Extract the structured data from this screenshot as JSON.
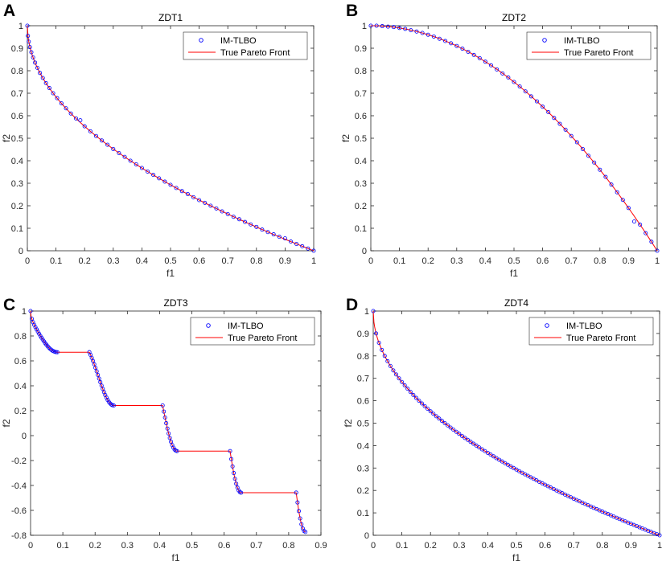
{
  "chart_data": [
    {
      "panel": "A",
      "type": "scatter+line",
      "title": "ZDT1",
      "xlabel": "f1",
      "ylabel": "f2",
      "xlim": [
        0,
        1
      ],
      "ylim": [
        0,
        1
      ],
      "xticks": [
        "0",
        "0.1",
        "0.2",
        "0.3",
        "0.4",
        "0.5",
        "0.6",
        "0.7",
        "0.8",
        "0.9",
        "1"
      ],
      "yticks": [
        "0",
        "0.1",
        "0.2",
        "0.3",
        "0.4",
        "0.5",
        "0.6",
        "0.7",
        "0.8",
        "0.9",
        "1"
      ],
      "legend": [
        "IM-TLBO",
        "True Pareto Front"
      ],
      "legend_position": "top-right",
      "true_front": "f2 = 1 - sqrt(f1), f1 in [0,1]",
      "series": [
        {
          "name": "IM-TLBO",
          "style": "blue circles",
          "x": [
            0,
            0.002,
            0.005,
            0.009,
            0.014,
            0.02,
            0.027,
            0.035,
            0.044,
            0.054,
            0.065,
            0.077,
            0.09,
            0.104,
            0.119,
            0.135,
            0.152,
            0.17,
            0.185,
            0.2,
            0.22,
            0.24,
            0.26,
            0.28,
            0.3,
            0.32,
            0.34,
            0.36,
            0.38,
            0.4,
            0.42,
            0.44,
            0.46,
            0.48,
            0.5,
            0.52,
            0.54,
            0.56,
            0.58,
            0.6,
            0.62,
            0.64,
            0.66,
            0.68,
            0.7,
            0.72,
            0.74,
            0.76,
            0.78,
            0.8,
            0.82,
            0.84,
            0.86,
            0.88,
            0.9,
            0.92,
            0.94,
            0.96,
            0.98,
            1.0
          ],
          "y": [
            1,
            0.955,
            0.929,
            0.905,
            0.882,
            0.859,
            0.836,
            0.813,
            0.79,
            0.768,
            0.745,
            0.723,
            0.7,
            0.678,
            0.655,
            0.633,
            0.61,
            0.588,
            0.58,
            0.553,
            0.531,
            0.51,
            0.49,
            0.471,
            0.452,
            0.434,
            0.417,
            0.4,
            0.384,
            0.368,
            0.352,
            0.337,
            0.322,
            0.307,
            0.293,
            0.279,
            0.265,
            0.252,
            0.238,
            0.225,
            0.213,
            0.2,
            0.188,
            0.175,
            0.163,
            0.151,
            0.14,
            0.128,
            0.117,
            0.106,
            0.094,
            0.083,
            0.073,
            0.062,
            0.055,
            0.041,
            0.03,
            0.02,
            0.01,
            0
          ]
        },
        {
          "name": "True Pareto Front",
          "style": "red line"
        }
      ]
    },
    {
      "panel": "B",
      "type": "scatter+line",
      "title": "ZDT2",
      "xlabel": "f1",
      "ylabel": "f2",
      "xlim": [
        0,
        1
      ],
      "ylim": [
        0,
        1
      ],
      "xticks": [
        "0",
        "0.1",
        "0.2",
        "0.3",
        "0.4",
        "0.5",
        "0.6",
        "0.7",
        "0.8",
        "0.9",
        "1"
      ],
      "yticks": [
        "0",
        "0.1",
        "0.2",
        "0.3",
        "0.4",
        "0.5",
        "0.6",
        "0.7",
        "0.8",
        "0.9",
        "1"
      ],
      "legend": [
        "IM-TLBO",
        "True Pareto Front"
      ],
      "legend_position": "top-right",
      "true_front": "f2 = 1 - f1^2, f1 in [0,1]",
      "series": [
        {
          "name": "IM-TLBO",
          "style": "blue circles",
          "x": [
            0,
            0.02,
            0.04,
            0.06,
            0.08,
            0.1,
            0.12,
            0.14,
            0.16,
            0.18,
            0.2,
            0.22,
            0.24,
            0.26,
            0.28,
            0.3,
            0.32,
            0.34,
            0.36,
            0.38,
            0.4,
            0.42,
            0.44,
            0.46,
            0.48,
            0.5,
            0.52,
            0.54,
            0.56,
            0.58,
            0.6,
            0.62,
            0.64,
            0.66,
            0.68,
            0.7,
            0.72,
            0.74,
            0.76,
            0.78,
            0.8,
            0.82,
            0.84,
            0.86,
            0.88,
            0.9,
            0.92,
            0.94,
            0.96,
            0.98,
            1.0
          ],
          "y": [
            1,
            1,
            0.998,
            0.996,
            0.994,
            0.99,
            0.986,
            0.98,
            0.974,
            0.968,
            0.96,
            0.952,
            0.942,
            0.932,
            0.922,
            0.91,
            0.898,
            0.884,
            0.87,
            0.856,
            0.84,
            0.824,
            0.806,
            0.788,
            0.77,
            0.75,
            0.73,
            0.708,
            0.686,
            0.664,
            0.64,
            0.616,
            0.59,
            0.564,
            0.538,
            0.51,
            0.482,
            0.452,
            0.422,
            0.392,
            0.36,
            0.328,
            0.294,
            0.26,
            0.226,
            0.19,
            0.13,
            0.116,
            0.078,
            0.04,
            0
          ]
        },
        {
          "name": "True Pareto Front",
          "style": "red line"
        }
      ]
    },
    {
      "panel": "C",
      "type": "scatter+line",
      "title": "ZDT3",
      "xlabel": "f1",
      "ylabel": "f2",
      "xlim": [
        0,
        0.9
      ],
      "ylim": [
        -0.8,
        1
      ],
      "xticks": [
        "0",
        "0.1",
        "0.2",
        "0.3",
        "0.4",
        "0.5",
        "0.6",
        "0.7",
        "0.8",
        "0.9"
      ],
      "yticks": [
        "-0.8",
        "-0.6",
        "-0.4",
        "-0.2",
        "0",
        "0.2",
        "0.4",
        "0.6",
        "0.8",
        "1"
      ],
      "legend": [
        "IM-TLBO",
        "True Pareto Front"
      ],
      "legend_position": "top-right",
      "true_front": "f2 = 1 - sqrt(f1) - f1*sin(10*pi*f1), disconnected segments joined by flat lines",
      "segments": [
        [
          0,
          0.083
        ],
        [
          0.1822,
          0.2578
        ],
        [
          0.4093,
          0.4539
        ],
        [
          0.6184,
          0.6525
        ],
        [
          0.8233,
          0.8518
        ]
      ],
      "series": [
        {
          "name": "IM-TLBO",
          "style": "blue circles",
          "note": "points lie on the disconnected segments of the true front"
        },
        {
          "name": "True Pareto Front",
          "style": "red line"
        }
      ]
    },
    {
      "panel": "D",
      "type": "scatter+line",
      "title": "ZDT4",
      "xlabel": "f1",
      "ylabel": "f2",
      "xlim": [
        0,
        1
      ],
      "ylim": [
        0,
        1
      ],
      "xticks": [
        "0",
        "0.1",
        "0.2",
        "0.3",
        "0.4",
        "0.5",
        "0.6",
        "0.7",
        "0.8",
        "0.9",
        "1"
      ],
      "yticks": [
        "0",
        "0.1",
        "0.2",
        "0.3",
        "0.4",
        "0.5",
        "0.6",
        "0.7",
        "0.8",
        "0.9",
        "1"
      ],
      "legend": [
        "IM-TLBO",
        "True Pareto Front"
      ],
      "legend_position": "top-right",
      "true_front": "f2 = 1 - sqrt(f1), f1 in [0,1]",
      "series": [
        {
          "name": "IM-TLBO",
          "style": "blue circles",
          "note": "evenly spread points along the true front"
        },
        {
          "name": "True Pareto Front",
          "style": "red line"
        }
      ]
    }
  ],
  "colors": {
    "marker": "#0000ff",
    "front": "#ff0000",
    "axis": "#262626"
  }
}
